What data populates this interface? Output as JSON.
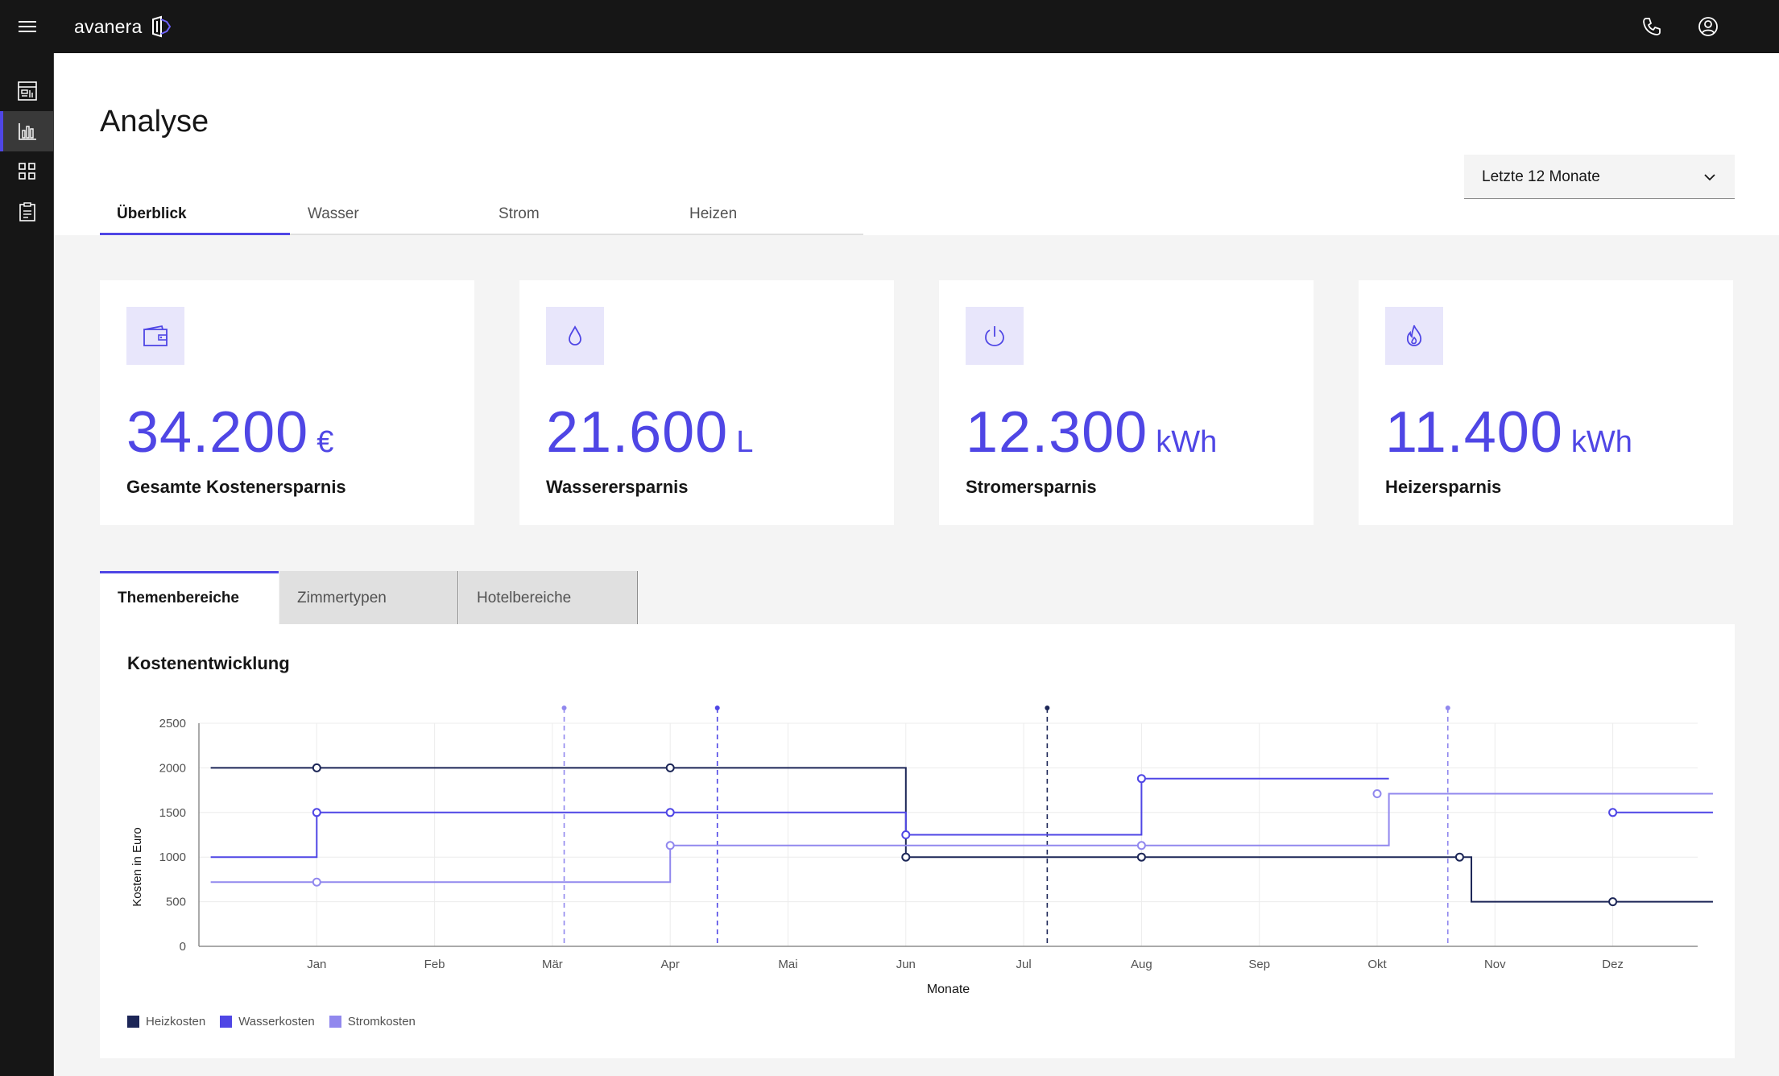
{
  "app": {
    "brand": "avanera"
  },
  "sidebar": {
    "items": [
      {
        "icon": "dashboard-icon"
      },
      {
        "icon": "bar-chart-icon",
        "active": true
      },
      {
        "icon": "grid-icon"
      },
      {
        "icon": "clipboard-icon"
      }
    ]
  },
  "page": {
    "title": "Analyse",
    "period_select": "Letzte 12 Monate",
    "tabs": [
      {
        "label": "Überblick",
        "active": true
      },
      {
        "label": "Wasser"
      },
      {
        "label": "Strom"
      },
      {
        "label": "Heizen"
      }
    ]
  },
  "kpis": [
    {
      "icon": "wallet-icon",
      "value": "34.200",
      "unit": "€",
      "label": "Gesamte Kostenersparnis"
    },
    {
      "icon": "water-drop-icon",
      "value": "21.600",
      "unit": "L",
      "label": "Wasserersparnis"
    },
    {
      "icon": "power-icon",
      "value": "12.300",
      "unit": "kWh",
      "label": "Stromersparnis"
    },
    {
      "icon": "flame-icon",
      "value": "11.400",
      "unit": "kWh",
      "label": "Heizersparnis"
    }
  ],
  "chart_tabs": [
    {
      "label": "Themenbereiche",
      "active": true
    },
    {
      "label": "Zimmertypen"
    },
    {
      "label": "Hotelbereiche"
    }
  ],
  "colors": {
    "accent": "#4f46e5",
    "heiz": "#1c2657",
    "wasser": "#4f46e5",
    "strom": "#9188ee"
  },
  "chart_data": {
    "type": "line",
    "step": true,
    "title": "Kostenentwicklung",
    "xlabel": "Monate",
    "ylabel": "Kosten in Euro",
    "x_ticks": [
      "Jan",
      "Feb",
      "Mär",
      "Apr",
      "Mai",
      "Jun",
      "Jul",
      "Aug",
      "Sep",
      "Okt",
      "Nov",
      "Dez"
    ],
    "ylim": [
      0,
      2500
    ],
    "y_ticks": [
      0,
      500,
      1000,
      1500,
      2000,
      2500
    ],
    "grid": true,
    "legend_position": "bottom-left",
    "series": [
      {
        "name": "Heizkosten",
        "color": "#1c2657",
        "steps": [
          [
            0.1,
            2000
          ],
          [
            6.0,
            1000
          ],
          [
            10.8,
            500
          ],
          [
            12.85,
            500
          ]
        ],
        "points": [
          [
            1,
            2000
          ],
          [
            4,
            2000
          ],
          [
            6.0,
            1000
          ],
          [
            8,
            1000
          ],
          [
            10.7,
            1000
          ],
          [
            12,
            500
          ]
        ]
      },
      {
        "name": "Wasserkosten",
        "color": "#4f46e5",
        "segments": [
          {
            "steps": [
              [
                0.1,
                1000
              ],
              [
                1,
                1500
              ],
              [
                6.0,
                1250
              ],
              [
                8,
                1880
              ],
              [
                10.1,
                1880
              ]
            ]
          },
          {
            "steps": [
              [
                12,
                1500
              ],
              [
                12.85,
                1500
              ]
            ]
          }
        ],
        "points": [
          [
            1,
            1500
          ],
          [
            4,
            1500
          ],
          [
            6.0,
            1250
          ],
          [
            8,
            1880
          ],
          [
            12,
            1500
          ]
        ]
      },
      {
        "name": "Stromkosten",
        "color": "#9188ee",
        "steps": [
          [
            0.1,
            720
          ],
          [
            4,
            1130
          ],
          [
            10.1,
            1710
          ],
          [
            12.85,
            1710
          ]
        ],
        "points": [
          [
            1,
            720
          ],
          [
            4,
            1130
          ],
          [
            8,
            1130
          ],
          [
            10.0,
            1710
          ]
        ]
      }
    ],
    "markers": [
      {
        "x": 3.1,
        "color": "#9188ee"
      },
      {
        "x": 4.4,
        "color": "#4f46e5"
      },
      {
        "x": 7.2,
        "color": "#1c2657"
      },
      {
        "x": 10.6,
        "color": "#9188ee"
      }
    ]
  }
}
